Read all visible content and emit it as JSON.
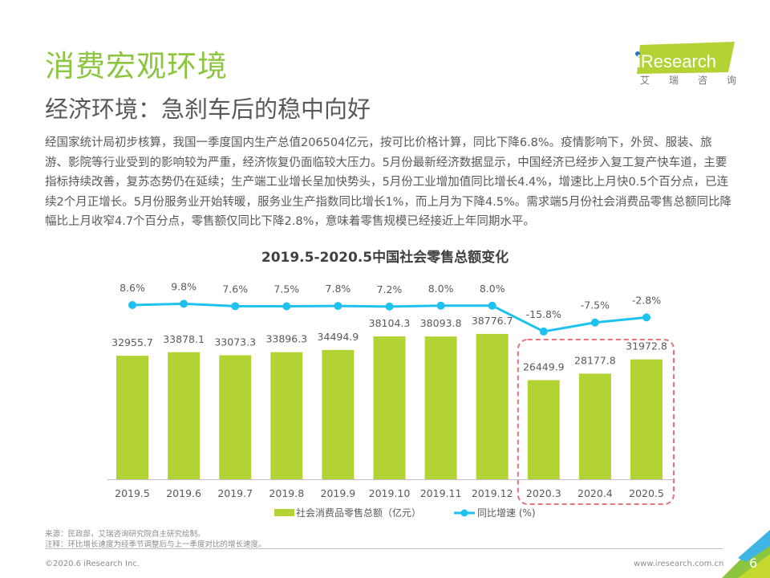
{
  "header": {
    "title": "消费宏观环境",
    "subtitle": "经济环境：急刹车后的稳中向好",
    "logo_text": "iResearch",
    "logo_sub": [
      "艾",
      "瑞",
      "咨",
      "询"
    ]
  },
  "body_text": "经国家统计局初步核算，我国一季度国内生产总值206504亿元，按可比价格计算，同比下降6.8%。疫情影响下，外贸、服装、旅游、影院等行业受到的影响较为严重，经济恢复仍面临较大压力。5月份最新经济数据显示，中国经济已经步入复工复产快车道，主要指标持续改善，复苏态势仍在延续；生产端工业增长呈加快势头，5月份工业增加值同比增长4.4%，增速比上月快0.5个百分点，已连续2个月正增长。5月份服务业开始转暖，服务业生产指数同比增长1%，而上月为下降4.5%。需求端5月份社会消费品零售总额同比降幅比上月收窄4.7个百分点，零售额仅同比下降2.8%，意味着零售规模已经接近上年同期水平。",
  "chart_data": {
    "type": "bar+line",
    "title": "2019.5-2020.5中国社会零售总额变化",
    "categories": [
      "2019.5",
      "2019.6",
      "2019.7",
      "2019.8",
      "2019.9",
      "2019.10",
      "2019.11",
      "2019.12",
      "2020.3",
      "2020.4",
      "2020.5"
    ],
    "series": [
      {
        "name": "社会消费品零售总额（亿元）",
        "type": "bar",
        "color": "#b3d334",
        "values": [
          32955.7,
          33878.1,
          33073.3,
          33896.3,
          34494.9,
          38104.3,
          38093.8,
          38776.7,
          26449.9,
          28177.8,
          31972.8
        ],
        "labels": [
          "32955.7",
          "33878.1",
          "33073.3",
          "33896.3",
          "34494.9",
          "38104.3",
          "38093.8",
          "38776.7",
          "26449.9",
          "28177.8",
          "31972.8"
        ]
      },
      {
        "name": "同比增速 (%)",
        "type": "line",
        "color": "#1fc1ef",
        "values": [
          8.6,
          9.8,
          7.6,
          7.5,
          7.8,
          7.2,
          8.0,
          8.0,
          -15.8,
          -7.5,
          -2.8
        ],
        "labels": [
          "8.6%",
          "9.8%",
          "7.6%",
          "7.5%",
          "7.8%",
          "7.2%",
          "8.0%",
          "8.0%",
          "-15.8%",
          "-7.5%",
          "-2.8%"
        ]
      }
    ],
    "highlight": {
      "categories": [
        "2020.3",
        "2020.4",
        "2020.5"
      ],
      "color": "#e8737a",
      "style": "dashed"
    },
    "legend": [
      "社会消费品零售总额（亿元）",
      "同比增速 (%)"
    ],
    "legend_position": "bottom",
    "grid": false
  },
  "footer": {
    "source": "来源：民政部，艾瑞咨询研究院自主研究绘制。",
    "note": "注释：环比增长速度为经季节调整后与上一季度对比的增长速度。",
    "copyright": "©2020.6 iResearch Inc.",
    "website": "www.iresearch.com.cn",
    "page_number": "6"
  },
  "colors": {
    "brand_green": "#8cc63e",
    "bar": "#b3d334",
    "line": "#1fc1ef",
    "highlight": "#e8737a"
  }
}
